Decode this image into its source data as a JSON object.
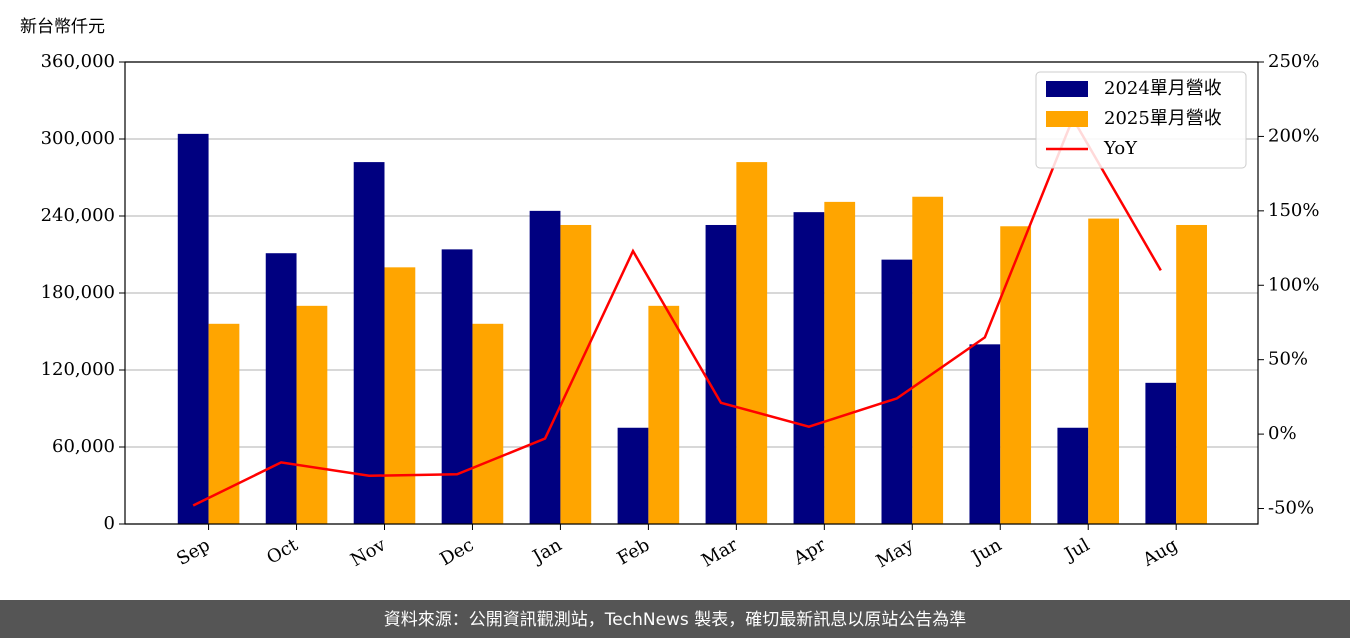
{
  "chart_data": {
    "type": "bar-line",
    "y_axis_label": "新台幣仟元",
    "categories": [
      "Sep",
      "Oct",
      "Nov",
      "Dec",
      "Jan",
      "Feb",
      "Mar",
      "Apr",
      "May",
      "Jun",
      "Jul",
      "Aug"
    ],
    "series": [
      {
        "name": "2024單月營收",
        "color": "#000080",
        "type": "bar",
        "values": [
          304000,
          211000,
          282000,
          214000,
          244000,
          75000,
          233000,
          243000,
          206000,
          140000,
          75000,
          110000
        ]
      },
      {
        "name": "2025單月營收",
        "color": "#ffa500",
        "type": "bar",
        "values": [
          156000,
          170000,
          200000,
          156000,
          233000,
          170000,
          282000,
          251000,
          255000,
          232000,
          238000,
          233000
        ]
      },
      {
        "name": "YoY",
        "color": "#ff0000",
        "type": "line",
        "axis": "y2",
        "values": [
          -48,
          -19,
          -28,
          -27,
          -3,
          123,
          21,
          5,
          24,
          65,
          212,
          110
        ]
      }
    ],
    "ylim": [
      0,
      360000
    ],
    "yticks": [
      {
        "value": 0,
        "label": "0"
      },
      {
        "value": 60000,
        "label": "60,000"
      },
      {
        "value": 120000,
        "label": "120,000"
      },
      {
        "value": 180000,
        "label": "180,000"
      },
      {
        "value": 240000,
        "label": "240,000"
      },
      {
        "value": 300000,
        "label": "300,000"
      },
      {
        "value": 360000,
        "label": "360,000"
      }
    ],
    "y2lim": [
      -60.4,
      250
    ],
    "y2ticks": [
      {
        "value": -50,
        "label": "-50%"
      },
      {
        "value": 0,
        "label": "0%"
      },
      {
        "value": 50,
        "label": "50%"
      },
      {
        "value": 100,
        "label": "100%"
      },
      {
        "value": 150,
        "label": "150%"
      },
      {
        "value": 200,
        "label": "200%"
      },
      {
        "value": 250,
        "label": "250%"
      }
    ],
    "grid": true,
    "legend": "upper right",
    "footer": "資料來源：公開資訊觀測站，TechNews 製表，確切最新訊息以原站公告為準"
  }
}
